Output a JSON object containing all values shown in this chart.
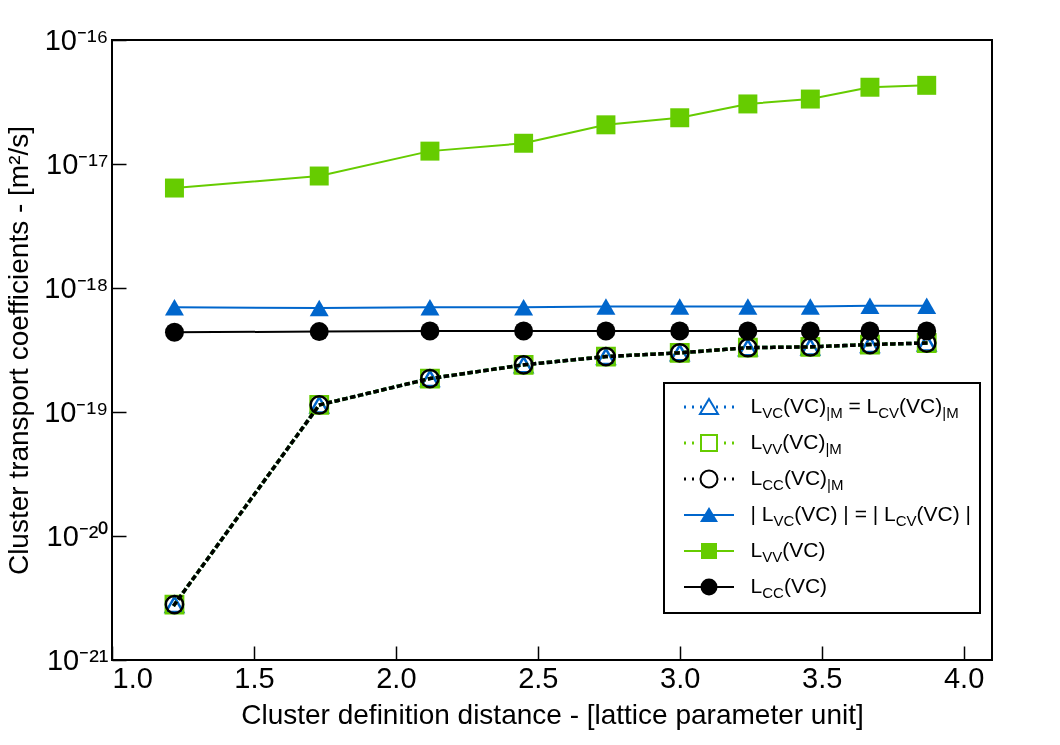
{
  "chart_data": {
    "type": "line",
    "xlabel": "Cluster definition distance - [lattice parameter unit]",
    "ylabel": "Cluster transport coefficients - [m²/s]",
    "x": [
      1.22,
      1.73,
      2.12,
      2.45,
      2.74,
      3.0,
      3.24,
      3.46,
      3.67,
      3.87
    ],
    "series": [
      {
        "name": "L$_{VC}$(VC)$_{|M}$ = L$_{CV}$(VC)$_{|M}$",
        "color": "#0066cc",
        "marker": "triangle",
        "line_style": "dotted",
        "values": [
          2.8e-21,
          1.14e-19,
          1.86e-19,
          2.4e-19,
          2.8e-19,
          3e-19,
          3.3e-19,
          3.35e-19,
          3.5e-19,
          3.6e-19
        ]
      },
      {
        "name": "L$_{VV}$(VC)$_{|M}$",
        "color": "#66cc00",
        "marker": "square",
        "line_style": "dotted",
        "values": [
          2.8e-21,
          1.14e-19,
          1.86e-19,
          2.4e-19,
          2.8e-19,
          3e-19,
          3.3e-19,
          3.35e-19,
          3.5e-19,
          3.6e-19
        ]
      },
      {
        "name": "L$_{CC}$(VC)$_{|M}$",
        "color": "#000000",
        "marker": "circle",
        "line_style": "dotted",
        "values": [
          2.8e-21,
          1.14e-19,
          1.86e-19,
          2.4e-19,
          2.8e-19,
          3e-19,
          3.3e-19,
          3.35e-19,
          3.5e-19,
          3.6e-19
        ]
      },
      {
        "name": "| L$_{VC}$(VC) | = | L$_{CV}$(VC) |",
        "color": "#0066cc",
        "marker": "triangle",
        "line_style": "solid",
        "values": [
          7e-19,
          6.9e-19,
          7e-19,
          7e-19,
          7.1e-19,
          7.1e-19,
          7.1e-19,
          7.1e-19,
          7.2e-19,
          7.2e-19
        ]
      },
      {
        "name": "L$_{VV}$(VC)",
        "color": "#66cc00",
        "marker": "square",
        "line_style": "solid",
        "values": [
          6.4e-18,
          8e-18,
          1.27e-17,
          1.47e-17,
          2.07e-17,
          2.36e-17,
          3.05e-17,
          3.34e-17,
          4.16e-17,
          4.31e-17
        ]
      },
      {
        "name": "L$_{CC}$(VC)",
        "color": "#000000",
        "marker": "circle",
        "line_style": "solid",
        "values": [
          4.4e-19,
          4.45e-19,
          4.5e-19,
          4.5e-19,
          4.5e-19,
          4.5e-19,
          4.5e-19,
          4.5e-19,
          4.5e-19,
          4.5e-19
        ]
      }
    ],
    "log": "y",
    "xlim": [
      1.0,
      4.1
    ],
    "xticks": [
      {
        "value": 1.0,
        "label": "1.0"
      },
      1.5,
      {
        "value": 2.0,
        "label": "2.0"
      },
      2.5,
      {
        "value": 3.0,
        "label": "3.0"
      },
      3.5,
      {
        "value": 4.0,
        "label": "4.0"
      }
    ],
    "ylim": [
      1e-21,
      1e-16
    ],
    "yticks": [
      {
        "value": 1e-21,
        "label": "10⁻²¹"
      },
      {
        "value": 1e-20,
        "label": "10⁻²⁰"
      },
      {
        "value": 1e-19,
        "label": "10⁻¹⁹"
      },
      {
        "value": 1e-18,
        "label": "10⁻¹⁸"
      },
      {
        "value": 1e-17,
        "label": "10⁻¹⁷"
      },
      {
        "value": 1e-16,
        "label": "10⁻¹⁶"
      }
    ],
    "grid": false,
    "legend": "bottom right"
  }
}
